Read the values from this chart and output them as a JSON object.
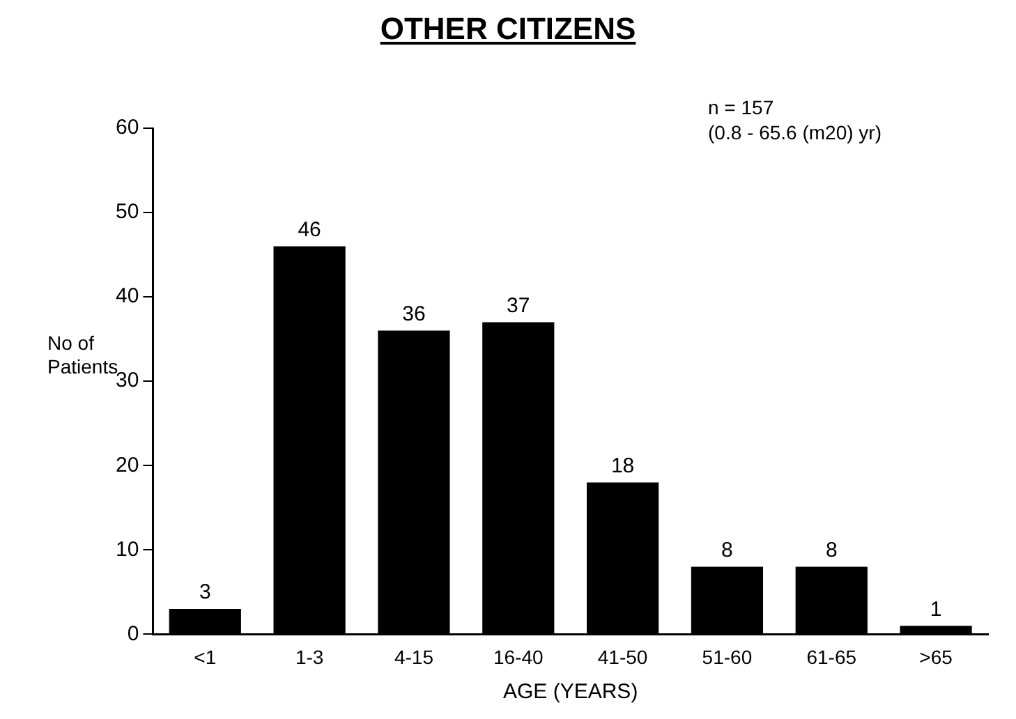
{
  "chart_data": {
    "type": "bar",
    "title": "OTHER CITIZENS",
    "xlabel": "AGE (YEARS)",
    "ylabel": "No of Patients",
    "annotations": [
      "n = 157",
      "(0.8 - 65.6 (m20) yr)"
    ],
    "categories": [
      "<1",
      "1-3",
      "4-15",
      "16-40",
      "41-50",
      "51-60",
      "61-65",
      ">65"
    ],
    "values": [
      3,
      46,
      36,
      37,
      18,
      8,
      8,
      1
    ],
    "color": "#000000",
    "ylim": [
      0,
      60
    ],
    "yticks": [
      0,
      10,
      20,
      30,
      40,
      50,
      60
    ],
    "grid": false,
    "legend": false,
    "data_labels": true
  }
}
